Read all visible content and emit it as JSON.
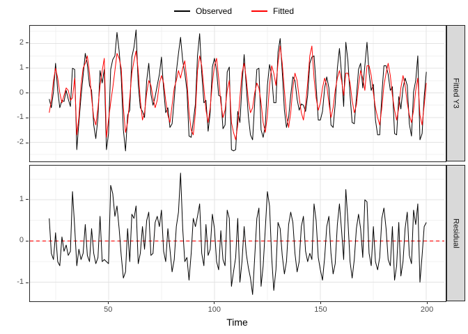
{
  "chart_data": {
    "type": "line",
    "title": "",
    "xlabel": "Time",
    "xlim": [
      12.9,
      208.5
    ],
    "xticks": [
      50,
      100,
      150,
      200
    ],
    "xticks_minor": [
      25,
      75,
      125,
      175
    ],
    "grid": {
      "major_color": "#e3e3e3",
      "minor_color": "#f1f1f1"
    },
    "legend": [
      {
        "name": "Observed",
        "color": "#000000"
      },
      {
        "name": "Fitted",
        "color": "#ff0000"
      }
    ],
    "time": [
      22,
      23,
      24,
      25,
      26,
      27,
      28,
      29,
      30,
      31,
      32,
      33,
      34,
      35,
      36,
      37,
      38,
      39,
      40,
      41,
      42,
      43,
      44,
      45,
      46,
      47,
      48,
      49,
      50,
      51,
      52,
      53,
      54,
      55,
      56,
      57,
      58,
      59,
      60,
      61,
      62,
      63,
      64,
      65,
      66,
      67,
      68,
      69,
      70,
      71,
      72,
      73,
      74,
      75,
      76,
      77,
      78,
      79,
      80,
      81,
      82,
      83,
      84,
      85,
      86,
      87,
      88,
      89,
      90,
      91,
      92,
      93,
      94,
      95,
      96,
      97,
      98,
      99,
      100,
      101,
      102,
      103,
      104,
      105,
      106,
      107,
      108,
      109,
      110,
      111,
      112,
      113,
      114,
      115,
      116,
      117,
      118,
      119,
      120,
      121,
      122,
      123,
      124,
      125,
      126,
      127,
      128,
      129,
      130,
      131,
      132,
      133,
      134,
      135,
      136,
      137,
      138,
      139,
      140,
      141,
      142,
      143,
      144,
      145,
      146,
      147,
      148,
      149,
      150,
      151,
      152,
      153,
      154,
      155,
      156,
      157,
      158,
      159,
      160,
      161,
      162,
      163,
      164,
      165,
      166,
      167,
      168,
      169,
      170,
      171,
      172,
      173,
      174,
      175,
      176,
      177,
      178,
      179,
      180,
      181,
      182,
      183,
      184,
      185,
      186,
      187,
      188,
      189,
      190,
      191,
      192,
      193,
      194,
      195,
      196,
      197,
      198,
      199,
      200
    ],
    "panels": [
      {
        "strip": "Fitted Y3",
        "ylim": [
          -2.72,
          2.72
        ],
        "yticks": [
          2,
          1,
          0,
          -1,
          -2
        ],
        "yticks_minor": [
          2.5,
          1.5,
          0.5,
          -0.5,
          -1.5,
          -2.5
        ],
        "series": [
          {
            "name": "Observed",
            "color": "#000000",
            "values": [
              -0.25,
              -0.6,
              0.05,
              1.2,
              0.1,
              -0.6,
              -0.3,
              -0.35,
              0.1,
              -0.25,
              -0.55,
              1.0,
              0.95,
              -2.3,
              -1.2,
              -0.15,
              0.7,
              1.6,
              1.15,
              0.3,
              0.1,
              -1.3,
              -1.85,
              -1.0,
              0.9,
              0.4,
              0.95,
              -2.3,
              -1.65,
              0.95,
              1.35,
              1.5,
              2.45,
              1.7,
              0.65,
              -1.5,
              -2.35,
              -0.9,
              -0.7,
              1.45,
              1.85,
              2.55,
              0.35,
              -0.6,
              -0.75,
              -1.0,
              0.5,
              1.2,
              -0.05,
              -0.5,
              -0.15,
              0.3,
              0.75,
              1.45,
              0.15,
              -0.8,
              -0.6,
              -1.4,
              -1.25,
              -0.25,
              0.85,
              1.6,
              2.25,
              1.3,
              0.8,
              0.1,
              -1.75,
              -1.8,
              -1.15,
              -0.45,
              1.5,
              2.4,
              0.8,
              -0.4,
              -0.3,
              -1.55,
              -0.8,
              1.05,
              1.4,
              0.9,
              -0.1,
              -0.15,
              -1.45,
              -1.3,
              0.85,
              1.05,
              -2.3,
              -2.35,
              -2.3,
              -0.75,
              -1.2,
              0.3,
              1.55,
              0.3,
              -0.95,
              -1.7,
              -1.9,
              -0.4,
              0.95,
              1.0,
              -1.5,
              -1.8,
              -1.3,
              0.3,
              1.15,
              0.7,
              -0.4,
              -0.4,
              1.65,
              2.2,
              0.85,
              -0.7,
              -1.4,
              -1.0,
              -0.1,
              0.65,
              0.5,
              -0.25,
              -0.7,
              -0.45,
              -0.5,
              -0.75,
              -0.1,
              1.2,
              1.45,
              1.5,
              0.3,
              -1.1,
              -1.1,
              -0.75,
              0.2,
              0.65,
              0.2,
              -1.3,
              -1.4,
              -0.45,
              1.0,
              1.8,
              0.75,
              -0.55,
              2.05,
              1.3,
              -0.1,
              -1.2,
              -1.25,
              -0.2,
              0.95,
              1.2,
              0.2,
              1.1,
              2.05,
              0.8,
              0.1,
              0.35,
              -1.1,
              -1.7,
              -1.7,
              -0.05,
              1.1,
              1.1,
              0.75,
              0.1,
              0.25,
              -1.65,
              -1.7,
              -0.15,
              -0.65,
              0.2,
              0.6,
              0.3,
              -1.25,
              -1.75,
              0.05,
              0.5,
              1.5,
              -1.9,
              -1.65,
              -0.15,
              0.85
            ]
          },
          {
            "name": "Fitted",
            "color": "#ff0000",
            "values": [
              -0.8,
              -0.3,
              0.5,
              1.0,
              0.6,
              0.0,
              -0.4,
              -0.1,
              0.2,
              0.1,
              -0.3,
              -0.2,
              0.6,
              -1.7,
              -1.0,
              0.3,
              1.0,
              1.2,
              1.5,
              0.8,
              -0.2,
              -1.0,
              -1.3,
              -0.6,
              0.3,
              0.9,
              1.4,
              -1.8,
              -1.1,
              -0.4,
              0.2,
              0.9,
              1.6,
              1.4,
              1.0,
              -0.6,
              -1.6,
              -1.2,
              -0.2,
              0.8,
              1.3,
              1.7,
              0.9,
              -0.3,
              -1.1,
              -0.8,
              0.0,
              0.5,
              0.3,
              -0.2,
              -0.6,
              -0.3,
              0.4,
              0.7,
              0.4,
              -0.3,
              -0.9,
              -1.2,
              -0.5,
              0.2,
              0.5,
              0.9,
              0.6,
              1.0,
              1.3,
              0.5,
              -0.8,
              -1.5,
              -1.7,
              -0.8,
              0.9,
              1.5,
              1.1,
              0.2,
              -0.7,
              -1.2,
              -0.6,
              0.4,
              1.1,
              1.4,
              0.6,
              -0.4,
              -1.0,
              -0.7,
              0.1,
              0.5,
              -1.2,
              -1.6,
              -1.9,
              -1.3,
              -0.2,
              0.8,
              1.2,
              0.6,
              -0.3,
              -0.8,
              -0.6,
              0.0,
              0.4,
              0.2,
              -0.4,
              -1.2,
              -1.6,
              -0.9,
              0.3,
              1.1,
              0.8,
              0.3,
              1.2,
              1.9,
              1.2,
              0.1,
              -0.9,
              -1.4,
              -0.8,
              0.2,
              0.8,
              0.5,
              -0.2,
              -0.8,
              -1.1,
              -0.5,
              0.4,
              1.5,
              1.9,
              0.6,
              -0.2,
              -0.7,
              -0.4,
              0.2,
              0.6,
              0.3,
              -0.4,
              -1.0,
              -0.6,
              0.1,
              0.6,
              0.9,
              0.5,
              -0.1,
              0.8,
              0.8,
              0.4,
              -0.3,
              -0.8,
              -0.5,
              0.3,
              0.9,
              0.6,
              0.1,
              1.1,
              1.1,
              0.7,
              0.0,
              -0.6,
              -1.0,
              -1.3,
              -0.6,
              0.3,
              0.8,
              1.2,
              0.7,
              -0.1,
              -0.7,
              -1.1,
              -0.6,
              0.2,
              0.7,
              0.3,
              -0.4,
              -0.9,
              -1.2,
              -0.7,
              0.1,
              0.6,
              -0.9,
              -1.3,
              -0.5,
              0.4
            ]
          }
        ]
      },
      {
        "strip": "Residual",
        "ylim": [
          -1.43,
          1.83
        ],
        "yticks": [
          1,
          0,
          -1
        ],
        "yticks_minor": [
          1.5,
          0.5,
          -0.5
        ],
        "refline": {
          "y": 0,
          "color": "#ff0000",
          "style": "dashed"
        },
        "series": [
          {
            "name": "Residual",
            "color": "#000000",
            "values": [
              0.55,
              -0.3,
              -0.45,
              0.2,
              -0.5,
              -0.6,
              0.1,
              -0.25,
              -0.1,
              -0.35,
              -0.25,
              1.2,
              0.35,
              -0.6,
              -0.2,
              -0.45,
              -0.3,
              0.4,
              -0.35,
              -0.5,
              0.3,
              -0.3,
              -0.55,
              -0.4,
              0.6,
              -0.5,
              -0.45,
              -0.5,
              -0.55,
              1.35,
              1.15,
              0.6,
              0.85,
              0.3,
              -0.35,
              -0.9,
              -0.75,
              0.3,
              -0.5,
              0.65,
              0.55,
              0.85,
              -0.55,
              -0.3,
              0.35,
              -0.2,
              0.5,
              0.7,
              -0.35,
              -0.3,
              0.45,
              0.6,
              0.35,
              0.75,
              -0.25,
              -0.5,
              0.3,
              -0.2,
              -0.75,
              -0.45,
              0.35,
              0.7,
              1.65,
              0.3,
              -0.5,
              -0.4,
              -0.95,
              -0.3,
              0.55,
              0.35,
              0.6,
              0.9,
              -0.3,
              -0.6,
              0.4,
              -0.35,
              -0.2,
              0.65,
              0.3,
              -0.5,
              -0.7,
              0.25,
              -0.45,
              -0.6,
              0.75,
              0.55,
              -1.1,
              -0.75,
              -0.4,
              0.55,
              -1.0,
              -0.5,
              0.35,
              -0.3,
              -0.65,
              -0.9,
              -1.3,
              -0.4,
              0.55,
              0.8,
              -1.1,
              -0.6,
              0.3,
              1.2,
              0.85,
              -0.4,
              -1.2,
              -0.7,
              0.45,
              0.3,
              -0.35,
              -0.8,
              -0.5,
              0.4,
              0.7,
              0.45,
              -0.3,
              -0.75,
              -0.5,
              0.35,
              0.6,
              -0.25,
              -0.5,
              -0.3,
              -0.45,
              0.9,
              0.5,
              -0.4,
              -0.7,
              -0.95,
              -0.4,
              0.35,
              0.6,
              -0.3,
              -0.8,
              -0.55,
              0.4,
              0.9,
              0.25,
              -0.45,
              1.25,
              0.5,
              -0.5,
              -0.9,
              -0.45,
              0.3,
              0.65,
              0.3,
              -0.4,
              1.0,
              0.95,
              -0.3,
              -0.6,
              0.35,
              -0.5,
              -0.7,
              -0.4,
              0.55,
              0.8,
              0.3,
              -0.45,
              -0.6,
              0.35,
              -0.95,
              -0.6,
              0.45,
              -0.85,
              -0.5,
              0.3,
              0.7,
              -0.35,
              -0.55,
              0.75,
              0.4,
              0.9,
              -1.0,
              -0.35,
              0.35,
              0.45
            ]
          }
        ]
      }
    ]
  }
}
